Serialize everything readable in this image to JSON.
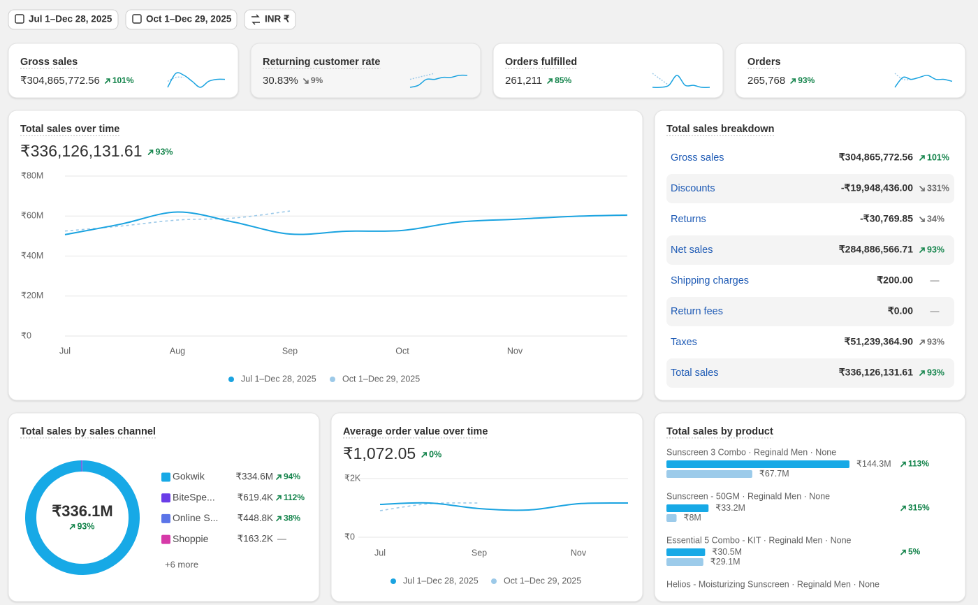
{
  "toolbar": {
    "date_range": "Jul 1–Dec 28, 2025",
    "compare_range": "Oct 1–Dec 29, 2025",
    "currency": "INR ₹"
  },
  "kpis": [
    {
      "title": "Gross sales",
      "value": "₹304,865,772.56",
      "change": "101%",
      "trend": "up",
      "spark": {
        "current": [
          1,
          8,
          7,
          4,
          1,
          4,
          5,
          5
        ],
        "previous": [
          4,
          6,
          6
        ]
      }
    },
    {
      "title": "Returning customer rate",
      "value": "30.83%",
      "change": "9%",
      "trend": "down",
      "selected": true,
      "spark": {
        "current": [
          1,
          2,
          5,
          5,
          6,
          6,
          7,
          7
        ],
        "previous": [
          5,
          6,
          7,
          8
        ]
      }
    },
    {
      "title": "Orders fulfilled",
      "value": "261,211",
      "change": "85%",
      "trend": "up",
      "spark": {
        "current": [
          1,
          1,
          2,
          7,
          2,
          2,
          1,
          1
        ],
        "previous": [
          8,
          5,
          2
        ]
      }
    },
    {
      "title": "Orders",
      "value": "265,768",
      "change": "93%",
      "trend": "up",
      "spark": {
        "current": [
          1,
          6,
          5,
          6,
          7,
          5,
          5,
          4
        ],
        "previous": [
          8,
          5,
          5
        ]
      }
    }
  ],
  "sales_over_time": {
    "title": "Total sales over time",
    "total": "₹336,126,131.61",
    "change": "93%",
    "trend": "up",
    "chart_data": {
      "type": "line",
      "categories": [
        "Jul",
        null,
        "Aug",
        null,
        "Sep",
        null,
        "Oct",
        null,
        "Nov",
        null,
        null
      ],
      "series": [
        {
          "name": "Jul 1–Dec 28, 2025",
          "color": "#1aa3e0",
          "style": "solid",
          "values": [
            50700000,
            56000000,
            62000000,
            57000000,
            51000000,
            52400000,
            52800000,
            57000000,
            58400000,
            59800000,
            60500000
          ]
        },
        {
          "name": "Oct 1–Dec 29, 2025",
          "color": "#9cc9e8",
          "style": "dashed",
          "values": [
            52500000,
            55000000,
            58000000,
            59000000,
            62500000,
            null,
            null,
            null,
            null,
            null,
            null
          ]
        }
      ],
      "ylim": [
        0,
        80000000
      ],
      "yticks": [
        {
          "value": 0,
          "label": "₹0"
        },
        {
          "value": 20000000,
          "label": "₹20M"
        },
        {
          "value": 40000000,
          "label": "₹40M"
        },
        {
          "value": 60000000,
          "label": "₹60M"
        },
        {
          "value": 80000000,
          "label": "₹80M"
        }
      ],
      "grid": true,
      "legend": "bottom"
    }
  },
  "breakdown": {
    "title": "Total sales breakdown",
    "rows": [
      {
        "label": "Gross sales",
        "value": "₹304,865,772.56",
        "change": "101%",
        "trend": "up"
      },
      {
        "label": "Discounts",
        "value": "-₹19,948,436.00",
        "change": "331%",
        "trend": "down"
      },
      {
        "label": "Returns",
        "value": "-₹30,769.85",
        "change": "34%",
        "trend": "down"
      },
      {
        "label": "Net sales",
        "value": "₹284,886,566.71",
        "change": "93%",
        "trend": "up"
      },
      {
        "label": "Shipping charges",
        "value": "₹200.00",
        "change": "—",
        "trend": "flat"
      },
      {
        "label": "Return fees",
        "value": "₹0.00",
        "change": "—",
        "trend": "flat"
      },
      {
        "label": "Taxes",
        "value": "₹51,239,364.90",
        "change": "93%",
        "trend": "neutral"
      },
      {
        "label": "Total sales",
        "value": "₹336,126,131.61",
        "change": "93%",
        "trend": "up"
      }
    ]
  },
  "channels": {
    "title": "Total sales by sales channel",
    "chart_data": {
      "type": "donut",
      "center_label": "₹336.1M",
      "center_change": "93%",
      "categories": [
        "Gokwik",
        "BiteSpe...",
        "Online S...",
        "Shoppie"
      ],
      "values": [
        334600000,
        619400,
        448800,
        163200
      ],
      "value_labels": [
        "₹334.6M",
        "₹619.4K",
        "₹448.8K",
        "₹163.2K"
      ],
      "changes": [
        "94%",
        "112%",
        "38%",
        "—"
      ],
      "trends": [
        "up",
        "up",
        "up",
        "flat"
      ],
      "colors": [
        "#17a9e6",
        "#6a3de8",
        "#5b74e8",
        "#d63aa8"
      ],
      "more": "+6 more"
    }
  },
  "aov": {
    "title": "Average order value over time",
    "total": "₹1,072.05",
    "change": "0%",
    "trend": "up",
    "chart_data": {
      "type": "line",
      "categories": [
        "Jul",
        null,
        "Sep",
        null,
        "Nov",
        null
      ],
      "series": [
        {
          "name": "Jul 1–Dec 28, 2025",
          "color": "#1aa3e0",
          "style": "solid",
          "values": [
            1119,
            1167,
            976,
            929,
            1143,
            1167
          ]
        },
        {
          "name": "Oct 1–Dec 29, 2025",
          "color": "#9cc9e8",
          "style": "dashed",
          "values": [
            905,
            1143,
            1167,
            null,
            null,
            null
          ]
        }
      ],
      "ylim": [
        0,
        2000
      ],
      "yticks": [
        {
          "value": 0,
          "label": "₹0"
        },
        {
          "value": 2000,
          "label": "₹2K"
        }
      ],
      "grid": true,
      "legend": "bottom"
    }
  },
  "products": {
    "title": "Total sales by product",
    "chart_data": {
      "type": "bar",
      "categories": [
        "Sunscreen 3 Combo · Reginald Men · None",
        "Sunscreen - 50GM · Reginald Men · None",
        "Essential 5 Combo - KIT · Reginald Men · None",
        "Helios - Moisturizing Sunscreen · Reginald Men · None"
      ],
      "series": [
        {
          "color": "#17a9e6",
          "values": [
            144300000,
            33200000,
            30500000,
            null
          ],
          "value_labels": [
            "₹144.3M",
            "₹33.2M",
            "₹30.5M",
            null
          ]
        },
        {
          "color": "#9ccbea",
          "values": [
            67700000,
            8000000,
            29100000,
            null
          ],
          "value_labels": [
            "₹67.7M",
            "₹8M",
            "₹29.1M",
            null
          ]
        }
      ],
      "changes": [
        "113%",
        "315%",
        "5%",
        null
      ]
    }
  }
}
